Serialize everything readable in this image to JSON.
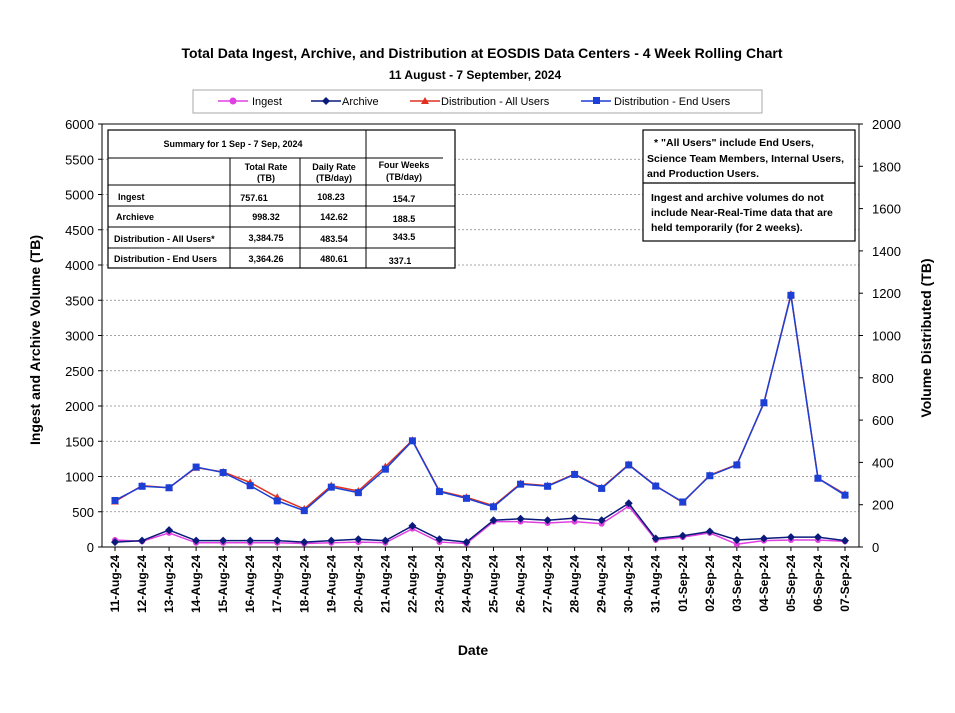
{
  "chart_data": {
    "type": "line",
    "title": "Total Data Ingest, Archive, and  Distribution at EOSDIS Data Centers - 4 Week Rolling Chart",
    "subtitle": "11  August   -  7  September,  2024",
    "xlabel": "Date",
    "ylabel_left": "Ingest and Archive Volume (TB)",
    "ylabel_right": "Volume Distributed (TB)",
    "ylim_left": [
      0,
      6000
    ],
    "ylim_right": [
      0,
      2000
    ],
    "yticks_left": [
      "0",
      "500",
      "1000",
      "1500",
      "2000",
      "2500",
      "3000",
      "3500",
      "4000",
      "4500",
      "5000",
      "5500",
      "6000"
    ],
    "yticks_right": [
      "0",
      "200",
      "400",
      "600",
      "800",
      "1000",
      "1200",
      "1400",
      "1600",
      "1800",
      "2000"
    ],
    "grid": "horizontal",
    "legend_position": "top",
    "categories": [
      "11-Aug-24",
      "12-Aug-24",
      "13-Aug-24",
      "14-Aug-24",
      "15-Aug-24",
      "16-Aug-24",
      "17-Aug-24",
      "18-Aug-24",
      "19-Aug-24",
      "20-Aug-24",
      "21-Aug-24",
      "22-Aug-24",
      "23-Aug-24",
      "24-Aug-24",
      "25-Aug-24",
      "26-Aug-24",
      "27-Aug-24",
      "28-Aug-24",
      "29-Aug-24",
      "30-Aug-24",
      "31-Aug-24",
      "01-Sep-24",
      "02-Sep-24",
      "03-Sep-24",
      "04-Sep-24",
      "05-Sep-24",
      "06-Sep-24",
      "07-Sep-24"
    ],
    "series": [
      {
        "name": "Ingest",
        "axis": "left",
        "color": "#e040e0",
        "marker": "circle",
        "values": [
          100,
          80,
          200,
          60,
          60,
          60,
          60,
          50,
          60,
          70,
          60,
          260,
          70,
          50,
          360,
          360,
          340,
          360,
          330,
          580,
          100,
          140,
          200,
          40,
          90,
          100,
          100,
          80
        ]
      },
      {
        "name": "Archive",
        "axis": "left",
        "color": "#0a1a7a",
        "marker": "diamond",
        "values": [
          70,
          90,
          240,
          90,
          90,
          90,
          90,
          70,
          90,
          110,
          90,
          300,
          110,
          70,
          380,
          400,
          380,
          410,
          380,
          620,
          120,
          160,
          220,
          100,
          120,
          140,
          140,
          90
        ]
      },
      {
        "name": "Distribution - All Users",
        "axis": "right",
        "color": "#e03020",
        "marker": "triangle",
        "values": [
          215,
          290,
          280,
          375,
          355,
          305,
          235,
          180,
          290,
          265,
          380,
          505,
          265,
          235,
          195,
          300,
          290,
          345,
          280,
          390,
          290,
          210,
          340,
          390,
          680,
          1195,
          325,
          250
        ]
      },
      {
        "name": "Distribution - End Users",
        "axis": "right",
        "color": "#1c3fd6",
        "marker": "square",
        "values": [
          220,
          287,
          280,
          378,
          352,
          290,
          218,
          172,
          283,
          257,
          368,
          502,
          262,
          230,
          190,
          297,
          287,
          343,
          277,
          388,
          288,
          213,
          337,
          388,
          682,
          1190,
          325,
          245
        ]
      }
    ]
  },
  "legend": {
    "items": [
      "Ingest",
      "Archive",
      "Distribution - All Users",
      "Distribution - End Users"
    ]
  },
  "summary_table": {
    "title": "Summary  for  1  Sep   -  7  Sep,  2024",
    "headers": {
      "total_rate": [
        "Total Rate",
        "(TB)"
      ],
      "daily_rate": [
        "Daily Rate",
        "(TB/day)"
      ],
      "four_weeks": [
        "Four Weeks",
        "(TB/day)"
      ]
    },
    "rows": [
      {
        "label": "Ingest",
        "total": "757.61",
        "daily": "108.23",
        "four_weeks": "154.7"
      },
      {
        "label": "Archieve",
        "total": "998.32",
        "daily": "142.62",
        "four_weeks": "188.5"
      },
      {
        "label": "Distribution - All Users*",
        "total": "3,384.75",
        "daily": "483.54",
        "four_weeks": "343.5"
      },
      {
        "label": "Distribution - End Users",
        "total": "3,364.26",
        "daily": "480.61",
        "four_weeks": "337.1"
      }
    ]
  },
  "notes": {
    "all_users": [
      "* \"All Users\" include End Users,",
      "Science Team Members,  Internal Users,",
      "and Production Users."
    ],
    "ingest_archive": [
      "Ingest and archive volumes do not",
      "include Near-Real-Time data that are",
      "held temporarily (for 2 weeks)."
    ]
  }
}
